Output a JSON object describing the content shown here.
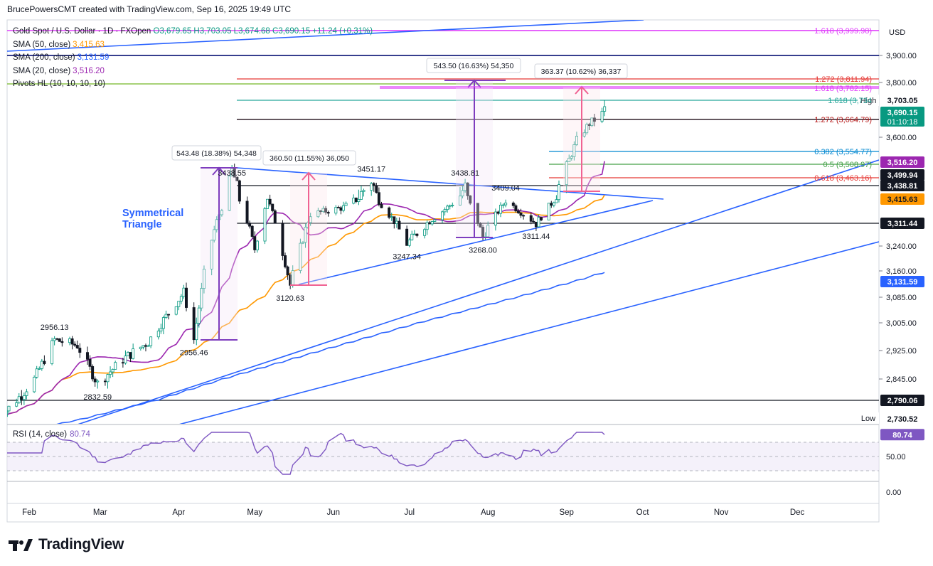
{
  "header": {
    "text": "BrucePowersCMT created with TradingView.com, Sep 16, 2025 19:49 UTC"
  },
  "legend": {
    "symbol": "Gold Spot / U.S. Dollar · 1D · FXOpen",
    "ohlc": "O3,679.65  H3,703.05  L3,674.68  C3,690.15  +11.24 (+0.31%)",
    "sma50_label": "SMA (50, close)",
    "sma50_value": "3,415.63",
    "sma200_label": "SMA (200, close)",
    "sma200_value": "3,131.59",
    "sma20_label": "SMA (20, close)",
    "sma20_value": "3,516.20",
    "pivots_label": "Pivots HL (10, 10, 10, 10)"
  },
  "annotation": {
    "triangle": "Symmetrical\nTriangle"
  },
  "rsi": {
    "label": "RSI (14, close)",
    "value": "80.74",
    "ticks": [
      "50.00",
      "0.00"
    ]
  },
  "currency": "USD",
  "footer": {
    "brand": "TradingView"
  },
  "colors": {
    "up": "#089981",
    "down": "#131722",
    "sma50": "#ff9800",
    "sma20": "#9c27b0",
    "sma200": "#2962ff",
    "rsi": "#7e57c2",
    "trend": "#2962ff"
  },
  "chart_data": {
    "type": "candlestick",
    "title": "Gold Spot / U.S. Dollar · 1D · FXOpen",
    "x_ticks": [
      "Feb",
      "Mar",
      "Apr",
      "May",
      "Jun",
      "Jul",
      "Aug",
      "Sep",
      "Oct",
      "Nov",
      "Dec"
    ],
    "y_ticks": [
      "3,900.00",
      "3,800.00",
      "3,600.00",
      "3,240.00",
      "3,160.00",
      "3,085.00",
      "3,005.00",
      "2,925.00",
      "2,845.00"
    ],
    "price_badges": [
      {
        "text": "3,703.05",
        "value": 3703.05,
        "style": "plain"
      },
      {
        "text": "3,690.15",
        "sub": "01:10:18",
        "value": 3690.15,
        "style": "green"
      },
      {
        "text": "3,516.20",
        "value": 3516.2,
        "style": "purple"
      },
      {
        "text": "3,499.94",
        "value": 3499.94,
        "style": "black"
      },
      {
        "text": "3,438.81",
        "value": 3438.81,
        "style": "black"
      },
      {
        "text": "3,415.63",
        "value": 3415.63,
        "style": "orange"
      },
      {
        "text": "3,311.44",
        "value": 3311.44,
        "style": "black"
      },
      {
        "text": "3,131.59",
        "value": 3131.59,
        "style": "blue"
      },
      {
        "text": "2,790.06",
        "value": 2790.06,
        "style": "black"
      },
      {
        "text": "2,730.52",
        "value": 2730.52,
        "style": "plain"
      }
    ],
    "high_low_tags": [
      "High",
      "Low"
    ],
    "fib_levels": [
      {
        "text": "1.618 (3,999.98)",
        "value": 3999.98,
        "color": "#e040fb"
      },
      {
        "text": "1.272 (3,811.94)",
        "value": 3811.94,
        "color": "#e53935"
      },
      {
        "text": "1.618 (3,782.15)",
        "value": 3782.15,
        "color": "#e040fb"
      },
      {
        "text": "1.618 (3,734",
        "value": 3734,
        "color": "#26a69a"
      },
      {
        "text": "1.272 (3,664.79)",
        "value": 3664.79,
        "color": "#b71c1c"
      },
      {
        "text": "0.382 (3,554.77)",
        "value": 3554.77,
        "color": "#0288d1"
      },
      {
        "text": "0.5 (3,508.97)",
        "value": 3508.97,
        "color": "#43a047"
      },
      {
        "text": "0.618 (3,463.16)",
        "value": 3463.16,
        "color": "#e53935"
      }
    ],
    "horizontal_lines": [
      3900,
      3834,
      3438.81,
      3311.44,
      2790.06
    ],
    "price_labels": [
      {
        "text": "3438.55",
        "date": "2025-04-22",
        "value": 3438.55
      },
      {
        "text": "3451.17",
        "date": "2025-06-16",
        "value": 3451.17
      },
      {
        "text": "3438.81",
        "date": "2025-07-23",
        "value": 3438.81
      },
      {
        "text": "3409.04",
        "date": "2025-08-08",
        "value": 3409.04
      },
      {
        "text": "3311.44",
        "date": "2025-08-20",
        "value": 3311.44
      },
      {
        "text": "3268.00",
        "date": "2025-07-30",
        "value": 3268.0
      },
      {
        "text": "3247.34",
        "date": "2025-06-30",
        "value": 3247.34
      },
      {
        "text": "3120.63",
        "date": "2025-05-15",
        "value": 3120.63
      },
      {
        "text": "2956.46",
        "date": "2025-04-07",
        "value": 2956.46
      },
      {
        "text": "2956.13",
        "date": "2025-02-11",
        "value": 2956.13
      },
      {
        "text": "2832.59",
        "date": "2025-02-28",
        "value": 2832.59
      }
    ],
    "measure_boxes": [
      {
        "text": "543.48 (18.38%) 54,348"
      },
      {
        "text": "360.50 (11.55%) 36,050"
      },
      {
        "text": "543.50 (16.63%) 54,350"
      },
      {
        "text": "363.37 (10.62%) 36,337"
      }
    ],
    "last": {
      "open": 3679.65,
      "high": 3703.05,
      "low": 3674.68,
      "close": 3690.15
    },
    "sma_last": {
      "sma20": 3516.2,
      "sma50": 3415.63,
      "sma200": 3131.59
    },
    "rsi_last": 80.74
  }
}
